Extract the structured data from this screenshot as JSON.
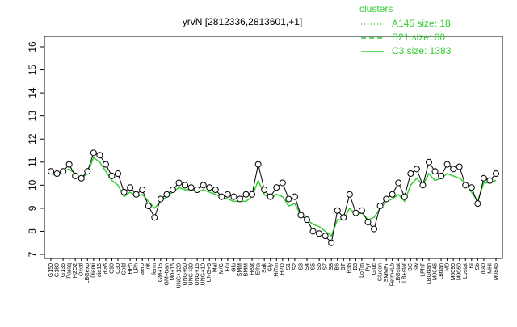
{
  "chart_data": {
    "type": "line",
    "title": "yrvN [2812336,2813601,+1]",
    "categories": [
      "G150",
      "G180",
      "G135",
      "Paraq",
      "H2O2",
      "Oxctl",
      "LBGexp",
      "Diami",
      "dia15",
      "dia5",
      "C90",
      "C30",
      "Cold",
      "HPh",
      "LPh",
      "aero",
      "nit",
      "ferm",
      "GM+15",
      "GM+tran",
      "M0+15",
      "UNG+120",
      "UNG+60",
      "UNG+30",
      "UNG+15",
      "UNG+10",
      "UNG+5",
      "Mal",
      "M/G",
      "Fru",
      "Glu",
      "SMM",
      "BMM",
      "Heat",
      "Etha",
      "Salt",
      "Gly",
      "HiTm",
      "H2O",
      "S1",
      "S2",
      "S3",
      "S4",
      "S5",
      "S6",
      "S7",
      "S8",
      "B6",
      "BT",
      "B36",
      "B8",
      "LoTm",
      "Pyr",
      "Gluc",
      "Glucon",
      "SMMPr",
      "Ferm+Lb",
      "LBGstat",
      "LB+stat",
      "BC",
      "Sw",
      "LPhT",
      "LBGtran",
      "M0045",
      "LBtran",
      "M0",
      "M0090",
      "M0060",
      "Lbstat",
      "BI",
      "Sb",
      "dia0",
      "MHI",
      "M0845"
    ],
    "series": [
      {
        "color": "#000000",
        "values": [
          10.6,
          10.5,
          10.6,
          10.9,
          10.4,
          10.3,
          10.6,
          11.4,
          11.3,
          10.9,
          10.4,
          10.5,
          9.7,
          9.9,
          9.6,
          9.8,
          9.1,
          8.6,
          9.4,
          9.6,
          9.8,
          10.1,
          10.0,
          9.9,
          9.8,
          10.0,
          9.9,
          9.8,
          9.5,
          9.6,
          9.5,
          9.4,
          9.6,
          9.6,
          10.9,
          9.8,
          9.5,
          9.9,
          10.1,
          9.4,
          9.5,
          8.7,
          8.5,
          8.0,
          7.9,
          7.8,
          7.5,
          8.9,
          8.6,
          9.6,
          8.8,
          8.9,
          8.4,
          8.1,
          9.1,
          9.4,
          9.6,
          10.1,
          9.5,
          10.5,
          10.7,
          10.0,
          11.0,
          10.6,
          10.4,
          10.9,
          10.7,
          10.8,
          10.0,
          9.9,
          9.2,
          10.3,
          10.2,
          10.5
        ]
      },
      {
        "color": "#33cc33",
        "values": [
          10.5,
          10.4,
          10.6,
          10.7,
          10.5,
          10.3,
          10.5,
          11.2,
          11.0,
          10.6,
          10.2,
          10.0,
          9.5,
          9.7,
          9.5,
          9.6,
          9.3,
          9.0,
          9.3,
          9.5,
          9.7,
          9.9,
          9.8,
          9.8,
          9.7,
          9.8,
          9.7,
          9.6,
          9.5,
          9.4,
          9.3,
          9.3,
          9.3,
          9.5,
          10.2,
          9.6,
          9.4,
          9.6,
          9.5,
          9.1,
          9.2,
          8.7,
          8.5,
          8.3,
          8.2,
          8.0,
          7.8,
          8.5,
          8.5,
          9.0,
          8.7,
          8.8,
          8.5,
          8.6,
          9.0,
          9.3,
          9.4,
          9.6,
          9.3,
          10.0,
          10.3,
          10.0,
          10.5,
          10.2,
          10.3,
          10.5,
          10.4,
          10.3,
          10.1,
          9.7,
          9.3,
          10.1,
          10.1,
          10.2
        ]
      }
    ],
    "ylim": [
      7,
      16
    ],
    "yticks": [
      7,
      8,
      9,
      10,
      11,
      12,
      13,
      14,
      15,
      16
    ],
    "legend": {
      "title": "clusters",
      "color": "#33cc33",
      "entries": [
        {
          "label": "A145 size: 18",
          "dash": "1,3"
        },
        {
          "label": "B21 size: 80",
          "dash": "6,4"
        },
        {
          "label": "C3 size: 1383",
          "dash": "none"
        }
      ]
    }
  }
}
